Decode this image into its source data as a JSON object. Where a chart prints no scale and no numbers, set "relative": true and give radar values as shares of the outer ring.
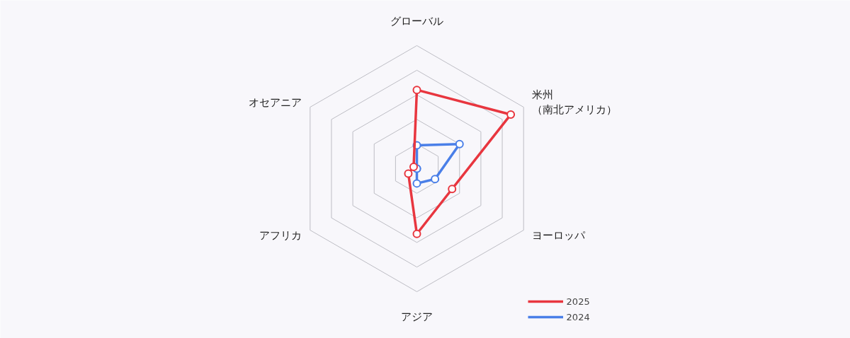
{
  "chart_data": {
    "type": "radar",
    "relative": true,
    "categories": [
      "グローバル",
      "米州（南北アメリカ）",
      "ヨーロッパ",
      "アジア",
      "アフリカ",
      "オセアニア"
    ],
    "series": [
      {
        "name": "2025",
        "color": "#e8363f",
        "values": [
          0.64,
          0.88,
          0.33,
          0.53,
          0.08,
          0.03
        ]
      },
      {
        "name": "2024",
        "color": "#4a7fe8",
        "values": [
          0.19,
          0.4,
          0.17,
          0.12,
          0,
          0
        ]
      }
    ],
    "grid": true,
    "legend": "bottom right",
    "marker": "circle",
    "line_style": "solid"
  }
}
